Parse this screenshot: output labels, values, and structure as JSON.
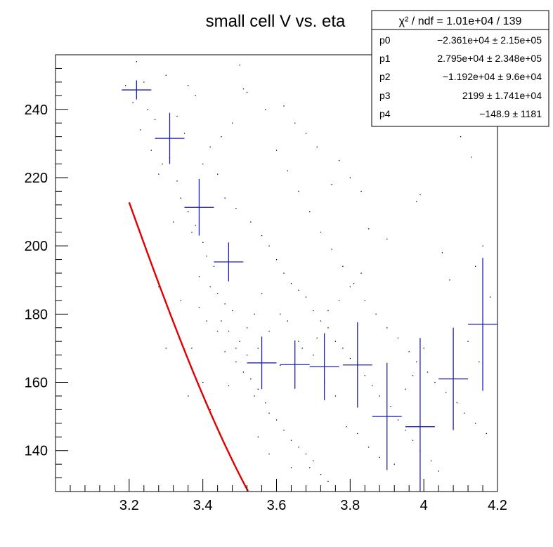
{
  "chart_data": {
    "type": "scatter",
    "title": "small cell V vs. eta",
    "xlabel": "",
    "ylabel": "",
    "xlim": [
      3.0,
      4.2
    ],
    "ylim": [
      128,
      256
    ],
    "x_ticks": [
      3.2,
      3.4,
      3.6,
      3.8,
      4.0,
      4.2
    ],
    "x_tick_labels": [
      "3.2",
      "3.4",
      "3.6",
      "3.8",
      "4",
      "4.2"
    ],
    "y_ticks": [
      140,
      160,
      180,
      200,
      220,
      240
    ],
    "y_tick_labels": [
      "140",
      "160",
      "180",
      "200",
      "220",
      "240"
    ],
    "profile": {
      "points": [
        {
          "x": 3.22,
          "y": 245.7,
          "xerr": 0.04,
          "yerr": 2.8
        },
        {
          "x": 3.31,
          "y": 231.5,
          "xerr": 0.04,
          "yerr": 7.5
        },
        {
          "x": 3.39,
          "y": 211.3,
          "xerr": 0.04,
          "yerr": 8.3
        },
        {
          "x": 3.47,
          "y": 195.3,
          "xerr": 0.04,
          "yerr": 5.7
        },
        {
          "x": 3.56,
          "y": 165.7,
          "xerr": 0.04,
          "yerr": 7.7
        },
        {
          "x": 3.65,
          "y": 165.2,
          "xerr": 0.04,
          "yerr": 7.1
        },
        {
          "x": 3.73,
          "y": 164.6,
          "xerr": 0.04,
          "yerr": 9.8
        },
        {
          "x": 3.82,
          "y": 165.1,
          "xerr": 0.04,
          "yerr": 12.5
        },
        {
          "x": 3.9,
          "y": 150.0,
          "xerr": 0.04,
          "yerr": 15.7
        },
        {
          "x": 3.99,
          "y": 147.0,
          "xerr": 0.04,
          "yerr": 26.0
        },
        {
          "x": 4.08,
          "y": 161.0,
          "xerr": 0.04,
          "yerr": 15.0
        },
        {
          "x": 4.16,
          "y": 177.0,
          "xerr": 0.04,
          "yerr": 19.5
        }
      ],
      "color": "#1f1fa8"
    },
    "fit": {
      "parameters": [
        -23610,
        27950,
        -11920,
        2199,
        -148.9
      ],
      "x_range": [
        3.2,
        4.2
      ],
      "color": "#e00000"
    },
    "scatter": {
      "color": "#000000",
      "points": [
        [
          3.22,
          254
        ],
        [
          3.24,
          248
        ],
        [
          3.19,
          247
        ],
        [
          3.21,
          242
        ],
        [
          3.25,
          240
        ],
        [
          3.27,
          237
        ],
        [
          3.23,
          234
        ],
        [
          3.26,
          228
        ],
        [
          3.29,
          224
        ],
        [
          3.28,
          221
        ],
        [
          3.31,
          226
        ],
        [
          3.33,
          219
        ],
        [
          3.34,
          214
        ],
        [
          3.36,
          210
        ],
        [
          3.32,
          207
        ],
        [
          3.38,
          206
        ],
        [
          3.37,
          204
        ],
        [
          3.4,
          201
        ],
        [
          3.41,
          197
        ],
        [
          3.43,
          194
        ],
        [
          3.39,
          191
        ],
        [
          3.42,
          188
        ],
        [
          3.44,
          186
        ],
        [
          3.46,
          183
        ],
        [
          3.48,
          181
        ],
        [
          3.45,
          178
        ],
        [
          3.47,
          175
        ],
        [
          3.5,
          172
        ],
        [
          3.49,
          170
        ],
        [
          3.52,
          168
        ],
        [
          3.51,
          163
        ],
        [
          3.53,
          161
        ],
        [
          3.55,
          158
        ],
        [
          3.54,
          156
        ],
        [
          3.57,
          154
        ],
        [
          3.58,
          151
        ],
        [
          3.6,
          149
        ],
        [
          3.62,
          146
        ],
        [
          3.64,
          143
        ],
        [
          3.66,
          141
        ],
        [
          3.68,
          139
        ],
        [
          3.7,
          137
        ],
        [
          3.69,
          135
        ],
        [
          3.72,
          133
        ],
        [
          3.74,
          131
        ],
        [
          3.5,
          253
        ],
        [
          3.51,
          246
        ],
        [
          3.52,
          245
        ],
        [
          3.48,
          236
        ],
        [
          3.45,
          232
        ],
        [
          3.42,
          229
        ],
        [
          3.4,
          224
        ],
        [
          3.44,
          221
        ],
        [
          3.46,
          214
        ],
        [
          3.49,
          211
        ],
        [
          3.53,
          207
        ],
        [
          3.56,
          203
        ],
        [
          3.58,
          200
        ],
        [
          3.6,
          196
        ],
        [
          3.62,
          192
        ],
        [
          3.64,
          189
        ],
        [
          3.66,
          187
        ],
        [
          3.68,
          185
        ],
        [
          3.7,
          181
        ],
        [
          3.72,
          178
        ],
        [
          3.74,
          176
        ],
        [
          3.76,
          172
        ],
        [
          3.78,
          170
        ],
        [
          3.8,
          167
        ],
        [
          3.82,
          165
        ],
        [
          3.84,
          162
        ],
        [
          3.86,
          159
        ],
        [
          3.88,
          156
        ],
        [
          3.91,
          153
        ],
        [
          3.93,
          149
        ],
        [
          3.95,
          146
        ],
        [
          3.97,
          143
        ],
        [
          3.99,
          140
        ],
        [
          4.02,
          137
        ],
        [
          4.04,
          134
        ],
        [
          3.36,
          247
        ],
        [
          3.38,
          244
        ],
        [
          3.3,
          250
        ],
        [
          3.33,
          238
        ],
        [
          3.35,
          233
        ],
        [
          3.57,
          240
        ],
        [
          3.6,
          228
        ],
        [
          3.63,
          222
        ],
        [
          3.66,
          216
        ],
        [
          3.69,
          210
        ],
        [
          3.72,
          204
        ],
        [
          3.75,
          199
        ],
        [
          3.78,
          194
        ],
        [
          3.81,
          189
        ],
        [
          3.84,
          184
        ],
        [
          3.87,
          180
        ],
        [
          3.9,
          176
        ],
        [
          3.93,
          173
        ],
        [
          3.96,
          169
        ],
        [
          3.98,
          166
        ],
        [
          4.01,
          163
        ],
        [
          4.03,
          160
        ],
        [
          4.06,
          157
        ],
        [
          4.09,
          154
        ],
        [
          4.11,
          151
        ],
        [
          4.14,
          148
        ],
        [
          4.17,
          145
        ],
        [
          4.1,
          232
        ],
        [
          4.13,
          226
        ],
        [
          4.05,
          198
        ],
        [
          4.07,
          190
        ],
        [
          3.98,
          213
        ],
        [
          3.99,
          215
        ],
        [
          3.9,
          202
        ],
        [
          3.85,
          205
        ],
        [
          3.83,
          216
        ],
        [
          3.8,
          220
        ],
        [
          3.77,
          225
        ],
        [
          3.75,
          218
        ],
        [
          3.71,
          229
        ],
        [
          3.68,
          233
        ],
        [
          3.65,
          236
        ],
        [
          3.62,
          241
        ],
        [
          3.4,
          160
        ],
        [
          3.42,
          152
        ],
        [
          3.36,
          156
        ],
        [
          3.3,
          170
        ],
        [
          3.34,
          184
        ],
        [
          3.28,
          188
        ],
        [
          3.55,
          170
        ],
        [
          3.58,
          175
        ],
        [
          3.61,
          180
        ],
        [
          3.63,
          178
        ],
        [
          3.66,
          172
        ],
        [
          3.7,
          168
        ],
        [
          3.73,
          160
        ],
        [
          3.76,
          156
        ],
        [
          3.79,
          147
        ],
        [
          3.82,
          145
        ],
        [
          3.85,
          141
        ],
        [
          3.88,
          138
        ],
        [
          3.92,
          136
        ],
        [
          3.95,
          158
        ],
        [
          3.97,
          162
        ],
        [
          4.0,
          170
        ],
        [
          4.12,
          172
        ],
        [
          4.15,
          166
        ],
        [
          4.18,
          185
        ],
        [
          4.16,
          200
        ],
        [
          4.14,
          194
        ],
        [
          3.55,
          144
        ],
        [
          3.58,
          139
        ],
        [
          3.61,
          165
        ],
        [
          3.64,
          135
        ],
        [
          3.67,
          170
        ],
        [
          3.71,
          173
        ],
        [
          3.74,
          181
        ],
        [
          3.77,
          184
        ],
        [
          3.8,
          188
        ],
        [
          3.83,
          192
        ],
        [
          3.46,
          169
        ],
        [
          3.44,
          175
        ],
        [
          3.41,
          178
        ],
        [
          3.39,
          182
        ],
        [
          3.37,
          170
        ],
        [
          3.47,
          159
        ],
        [
          3.49,
          166
        ],
        [
          3.52,
          176
        ],
        [
          3.54,
          180
        ],
        [
          3.56,
          186
        ]
      ]
    },
    "stats_box": {
      "header": "χ² / ndf = 1.01e+04 / 139",
      "rows": [
        {
          "name": "p0",
          "value": "−2.361e+04 ± 2.15e+05"
        },
        {
          "name": "p1",
          "value": "2.795e+04 ± 2.348e+05"
        },
        {
          "name": "p2",
          "value": "−1.192e+04 ± 9.6e+04"
        },
        {
          "name": "p3",
          "value": "2199 ± 1.741e+04"
        },
        {
          "name": "p4",
          "value": "−148.9 ±  1181"
        }
      ]
    }
  }
}
